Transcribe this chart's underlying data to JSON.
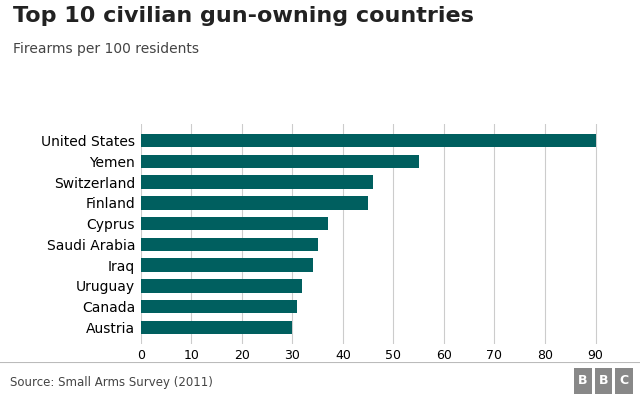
{
  "title": "Top 10 civilian gun-owning countries",
  "subtitle": "Firearms per 100 residents",
  "source": "Source: Small Arms Survey (2011)",
  "bbc_label": "BBC",
  "countries": [
    "Austria",
    "Canada",
    "Uruguay",
    "Iraq",
    "Saudi Arabia",
    "Cyprus",
    "Finland",
    "Switzerland",
    "Yemen",
    "United States"
  ],
  "values": [
    30,
    31,
    32,
    34,
    35,
    37,
    45,
    46,
    55,
    90
  ],
  "bar_color": "#005f5f",
  "background_color": "#ffffff",
  "footer_background": "#e8e8e8",
  "xlim": [
    0,
    95
  ],
  "xticks": [
    0,
    10,
    20,
    30,
    40,
    50,
    60,
    70,
    80,
    90
  ],
  "title_fontsize": 16,
  "subtitle_fontsize": 10,
  "tick_fontsize": 9,
  "label_fontsize": 10,
  "source_fontsize": 8.5
}
